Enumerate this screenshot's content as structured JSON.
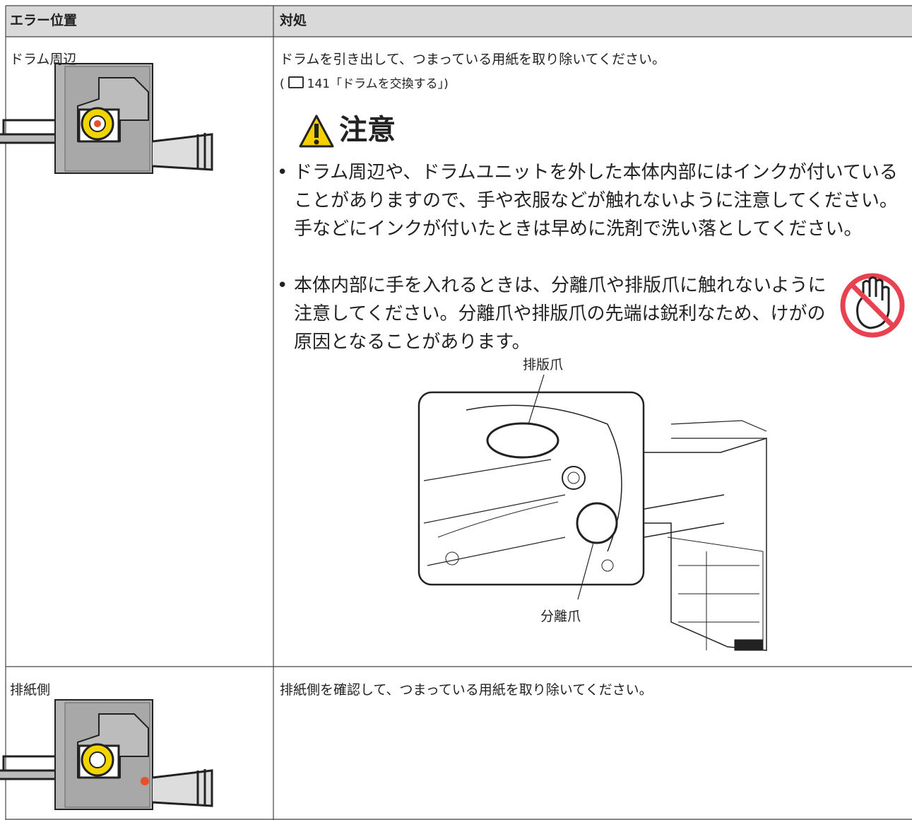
{
  "table": {
    "header": [
      "エラー位置",
      "対処"
    ],
    "rows": [
      {
        "location": "ドラム周辺",
        "action": "ドラムを引き出して、つまっている用紙を取り除いてください。",
        "reference": {
          "open": "(",
          "page": "141",
          "title": "「ドラムを交換する」",
          "close": ")"
        },
        "caution": {
          "heading": "注意",
          "items": [
            "ドラム周辺や、ドラムユニットを外した本体内部にはインクが付いていることがありますので、手や衣服などが触れないように注意してください。手などにインクが付いたときは早めに洗剤で洗い落としてください。",
            "本体内部に手を入れるときは、分離爪や排版爪に触れないように注意してください。分離爪や排版爪の先端は鋭利なため、けがの原因となることがあります。"
          ]
        },
        "figure_labels": [
          "排版爪",
          "分離爪"
        ]
      },
      {
        "location": "排紙側",
        "action": "排紙側を確認して、つまっている用紙を取り除いてください。"
      }
    ]
  }
}
